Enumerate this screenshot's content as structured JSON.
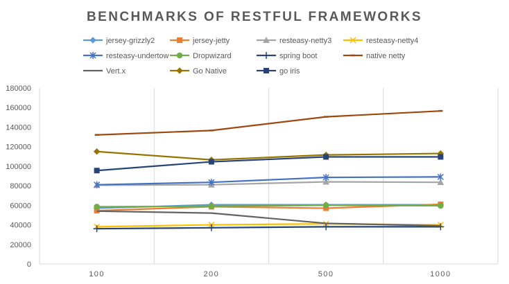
{
  "chart_data": {
    "type": "line",
    "title": "BENCHMARKS OF RESTFUL FRAMEWORKS",
    "xlabel": "",
    "ylabel": "",
    "categories": [
      "100",
      "200",
      "500",
      "1000"
    ],
    "ylim": [
      0,
      180000
    ],
    "yticks": [
      0,
      20000,
      40000,
      60000,
      80000,
      100000,
      120000,
      140000,
      160000,
      180000
    ],
    "grid": "vertical",
    "legend_position": "top",
    "series": [
      {
        "name": "jersey-grizzly2",
        "color": "#5B9BD5",
        "marker": "diamond",
        "values": [
          57000,
          60500,
          60500,
          60500
        ]
      },
      {
        "name": "jersey-jetty",
        "color": "#ED7D31",
        "marker": "square",
        "values": [
          54500,
          58500,
          57000,
          61000
        ]
      },
      {
        "name": "resteasy-netty3",
        "color": "#A5A5A5",
        "marker": "triangle",
        "values": [
          80500,
          81000,
          84000,
          83500
        ]
      },
      {
        "name": "resteasy-netty4",
        "color": "#FFC000",
        "marker": "x",
        "values": [
          38000,
          40000,
          41000,
          40000
        ]
      },
      {
        "name": "resteasy-undertow",
        "color": "#4472C4",
        "marker": "star",
        "values": [
          81000,
          83500,
          88500,
          89000
        ]
      },
      {
        "name": "Dropwizard",
        "color": "#70AD47",
        "marker": "circle",
        "values": [
          58500,
          59000,
          60000,
          59500
        ]
      },
      {
        "name": "spring boot",
        "color": "#264478",
        "marker": "plus",
        "values": [
          36000,
          37000,
          38000,
          38000
        ]
      },
      {
        "name": "native netty",
        "color": "#9E480E",
        "marker": "dash",
        "values": [
          132000,
          136500,
          150500,
          156500
        ]
      },
      {
        "name": "Vert.x",
        "color": "#636363",
        "marker": "none",
        "values": [
          54000,
          52000,
          41500,
          39000
        ]
      },
      {
        "name": "Go Native",
        "color": "#997300",
        "marker": "diamond",
        "values": [
          115000,
          106500,
          111500,
          113000
        ]
      },
      {
        "name": "go iris",
        "color": "#264478",
        "marker": "square",
        "values": [
          95500,
          104500,
          109500,
          109500
        ]
      }
    ]
  }
}
